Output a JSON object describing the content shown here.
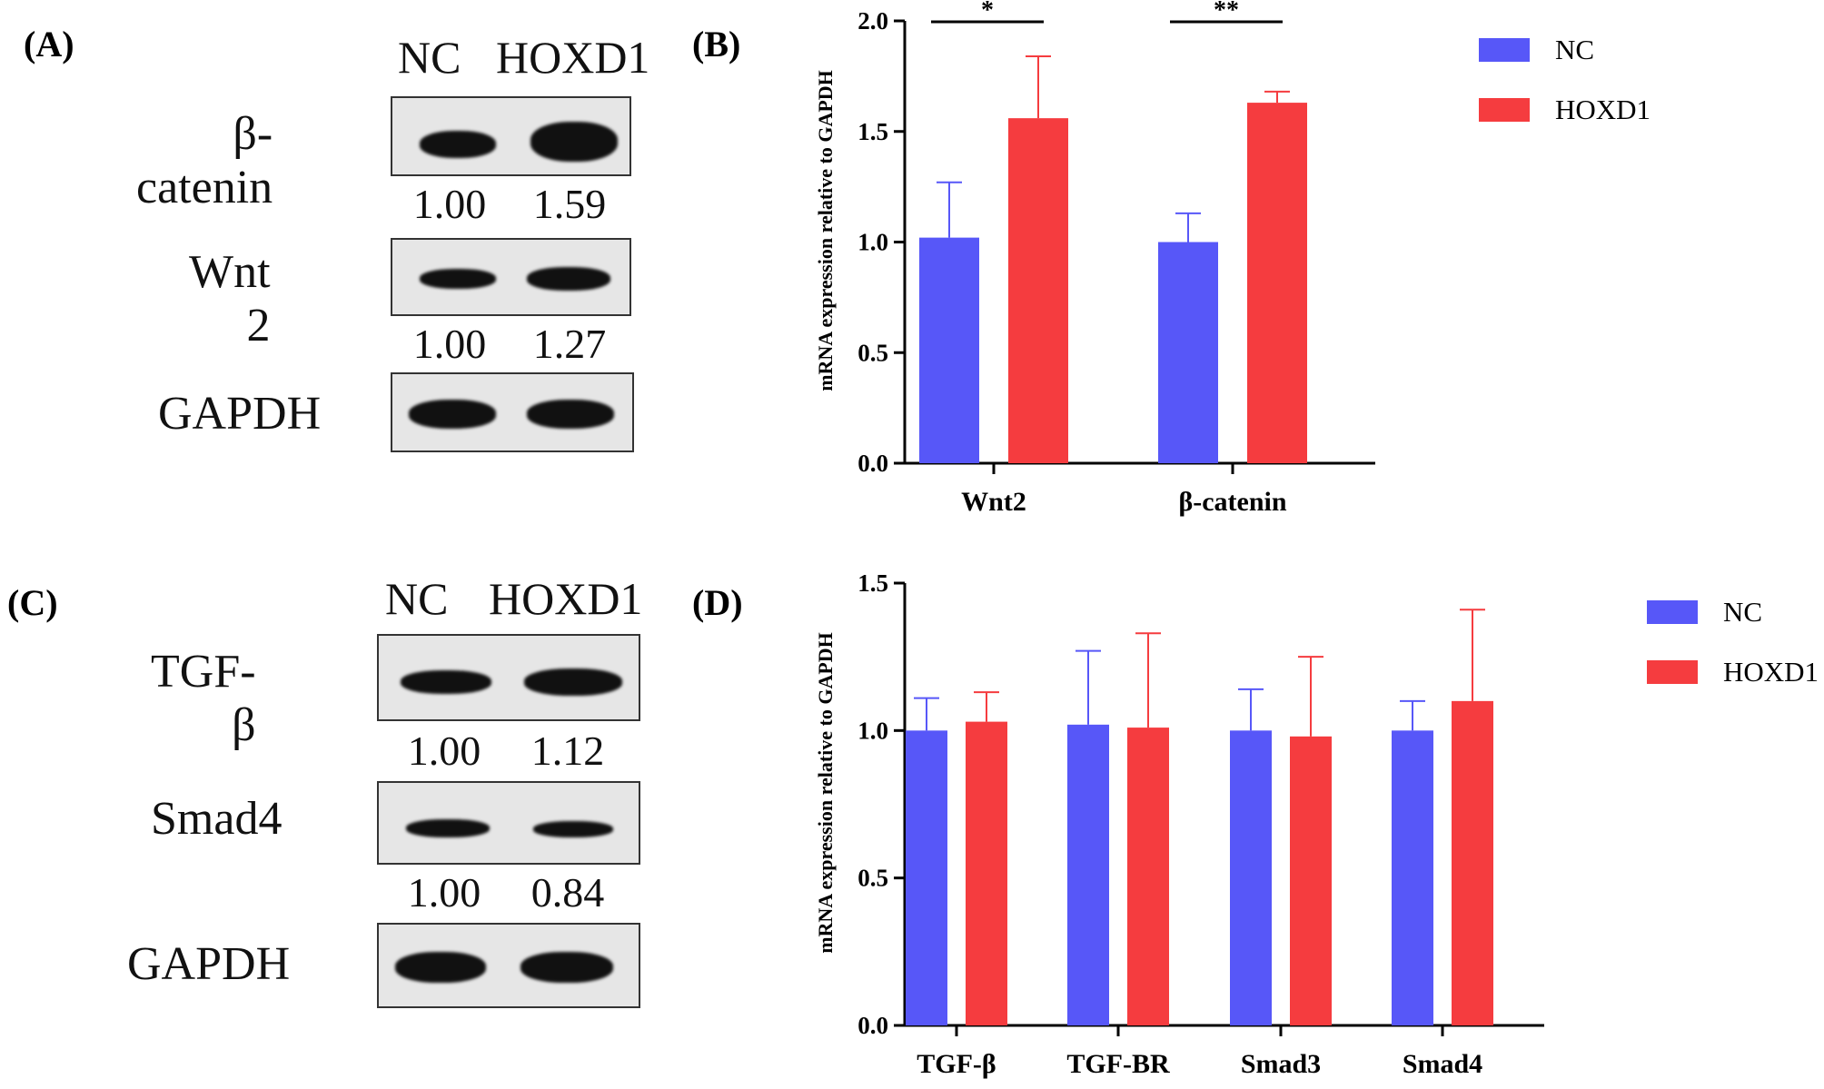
{
  "panels": {
    "a": "(A)",
    "b": "(B)",
    "c": "(C)",
    "d": "(D)"
  },
  "western_top": {
    "lanes": [
      "NC",
      "HOXD1"
    ],
    "blots": [
      {
        "protein": "β-catenin",
        "quant": [
          "1.00",
          "1.59"
        ]
      },
      {
        "protein": "Wnt 2",
        "quant": [
          "1.00",
          "1.27"
        ]
      },
      {
        "protein": "GAPDH"
      }
    ]
  },
  "western_bottom": {
    "lanes": [
      "NC",
      "HOXD1"
    ],
    "blots": [
      {
        "protein": "TGF-β",
        "quant": [
          "1.00",
          "1.12"
        ]
      },
      {
        "protein": "Smad4",
        "quant": [
          "1.00",
          "0.84"
        ]
      },
      {
        "protein": "GAPDH"
      }
    ]
  },
  "colors": {
    "nc": "#5757f8",
    "hoxd1": "#f53c3f"
  },
  "chart_data": [
    {
      "type": "bar",
      "panel": "B",
      "ylabel": "mRNA expression relative to GAPDH",
      "ylim": [
        0,
        2.0
      ],
      "yticks": [
        "0.0",
        "0.5",
        "1.0",
        "1.5",
        "2.0"
      ],
      "categories": [
        "Wnt2",
        "β-catenin"
      ],
      "series": [
        {
          "name": "NC",
          "values": [
            1.02,
            1.0
          ],
          "errors": [
            0.25,
            0.13
          ]
        },
        {
          "name": "HOXD1",
          "values": [
            1.56,
            1.63
          ],
          "errors": [
            0.28,
            0.05
          ]
        }
      ],
      "significance": [
        "*",
        "**"
      ],
      "legend": "top-right"
    },
    {
      "type": "bar",
      "panel": "D",
      "ylabel": "mRNA expression relative to GAPDH",
      "ylim": [
        0,
        1.5
      ],
      "yticks": [
        "0.0",
        "0.5",
        "1.0",
        "1.5"
      ],
      "categories": [
        "TGF-β",
        "TGF-BR",
        "Smad3",
        "Smad4"
      ],
      "series": [
        {
          "name": "NC",
          "values": [
            1.0,
            1.02,
            1.0,
            1.0
          ],
          "errors": [
            0.11,
            0.25,
            0.14,
            0.1
          ]
        },
        {
          "name": "HOXD1",
          "values": [
            1.03,
            1.01,
            0.98,
            1.1
          ],
          "errors": [
            0.1,
            0.32,
            0.27,
            0.31
          ]
        }
      ],
      "legend": "top-right"
    }
  ]
}
